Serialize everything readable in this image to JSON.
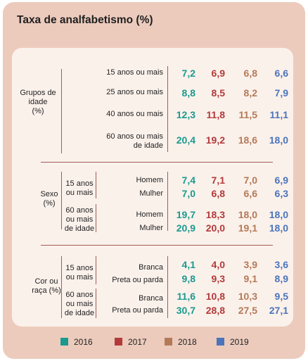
{
  "chart_data": {
    "type": "table",
    "title": "Taxa de analfabetismo (%)",
    "series": [
      {
        "name": "2016",
        "color": "#1a9a8f"
      },
      {
        "name": "2017",
        "color": "#b23a3a"
      },
      {
        "name": "2018",
        "color": "#b47a58"
      },
      {
        "name": "2019",
        "color": "#4b74ba"
      }
    ],
    "groups": [
      {
        "label": "Grupos de idade (%)",
        "rows": [
          {
            "label": "15 anos ou mais",
            "values": [
              "7,2",
              "6,9",
              "6,8",
              "6,6"
            ]
          },
          {
            "label": "25 anos ou mais",
            "values": [
              "8,8",
              "8,5",
              "8,2",
              "7,9"
            ]
          },
          {
            "label": "40 anos ou mais",
            "values": [
              "12,3",
              "11,8",
              "11,5",
              "11,1"
            ]
          },
          {
            "label": "60 anos ou mais de idade",
            "values": [
              "20,4",
              "19,2",
              "18,6",
              "18,0"
            ]
          }
        ]
      },
      {
        "label": "Sexo (%)",
        "subgroups": [
          {
            "label": "15 anos ou mais",
            "rows": [
              {
                "label": "Homem",
                "values": [
                  "7,4",
                  "7,1",
                  "7,0",
                  "6,9"
                ]
              },
              {
                "label": "Mulher",
                "values": [
                  "7,0",
                  "6,8",
                  "6,6",
                  "6,3"
                ]
              }
            ]
          },
          {
            "label": "60 anos ou mais de idade",
            "rows": [
              {
                "label": "Homem",
                "values": [
                  "19,7",
                  "18,3",
                  "18,0",
                  "18,0"
                ]
              },
              {
                "label": "Mulher",
                "values": [
                  "20,9",
                  "20,0",
                  "19,1",
                  "18,0"
                ]
              }
            ]
          }
        ]
      },
      {
        "label": "Cor ou raça (%)",
        "subgroups": [
          {
            "label": "15 anos ou mais",
            "rows": [
              {
                "label": "Branca",
                "values": [
                  "4,1",
                  "4,0",
                  "3,9",
                  "3,6"
                ]
              },
              {
                "label": "Preta ou parda",
                "values": [
                  "9,8",
                  "9,3",
                  "9,1",
                  "8,9"
                ]
              }
            ]
          },
          {
            "label": "60 anos ou mais de idade",
            "rows": [
              {
                "label": "Branca",
                "values": [
                  "11,6",
                  "10,8",
                  "10,3",
                  "9,5"
                ]
              },
              {
                "label": "Preta ou parda",
                "values": [
                  "30,7",
                  "28,8",
                  "27,5",
                  "27,1"
                ]
              }
            ]
          }
        ]
      }
    ]
  }
}
